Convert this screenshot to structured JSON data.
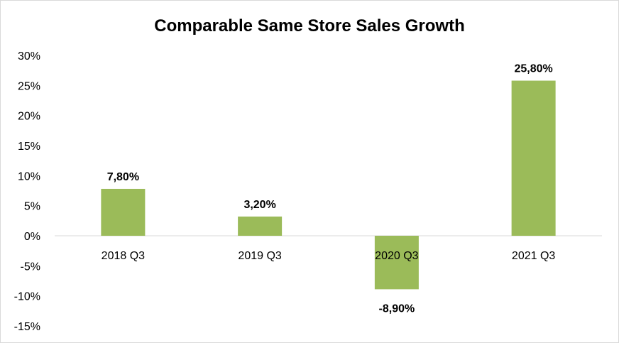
{
  "chart_data": {
    "type": "bar",
    "title": "Comparable Same Store Sales Growth",
    "categories": [
      "2018 Q3",
      "2019 Q3",
      "2020 Q3",
      "2021 Q3"
    ],
    "values": [
      7.8,
      3.2,
      -8.9,
      25.8
    ],
    "data_labels": [
      "7,80%",
      "3,20%",
      "-8,90%",
      "25,80%"
    ],
    "yticks": [
      30,
      25,
      20,
      15,
      10,
      5,
      0,
      -5,
      -10,
      -15
    ],
    "ytick_labels": [
      "30%",
      "25%",
      "20%",
      "15%",
      "10%",
      "5%",
      "0%",
      "-5%",
      "-10%",
      "-15%"
    ],
    "ylim": [
      -15,
      30
    ],
    "xlabel": "",
    "ylabel": "",
    "grid": false,
    "legend": "none",
    "bar_color": "#9bbb59",
    "axis_color": "#d9d9d9"
  }
}
